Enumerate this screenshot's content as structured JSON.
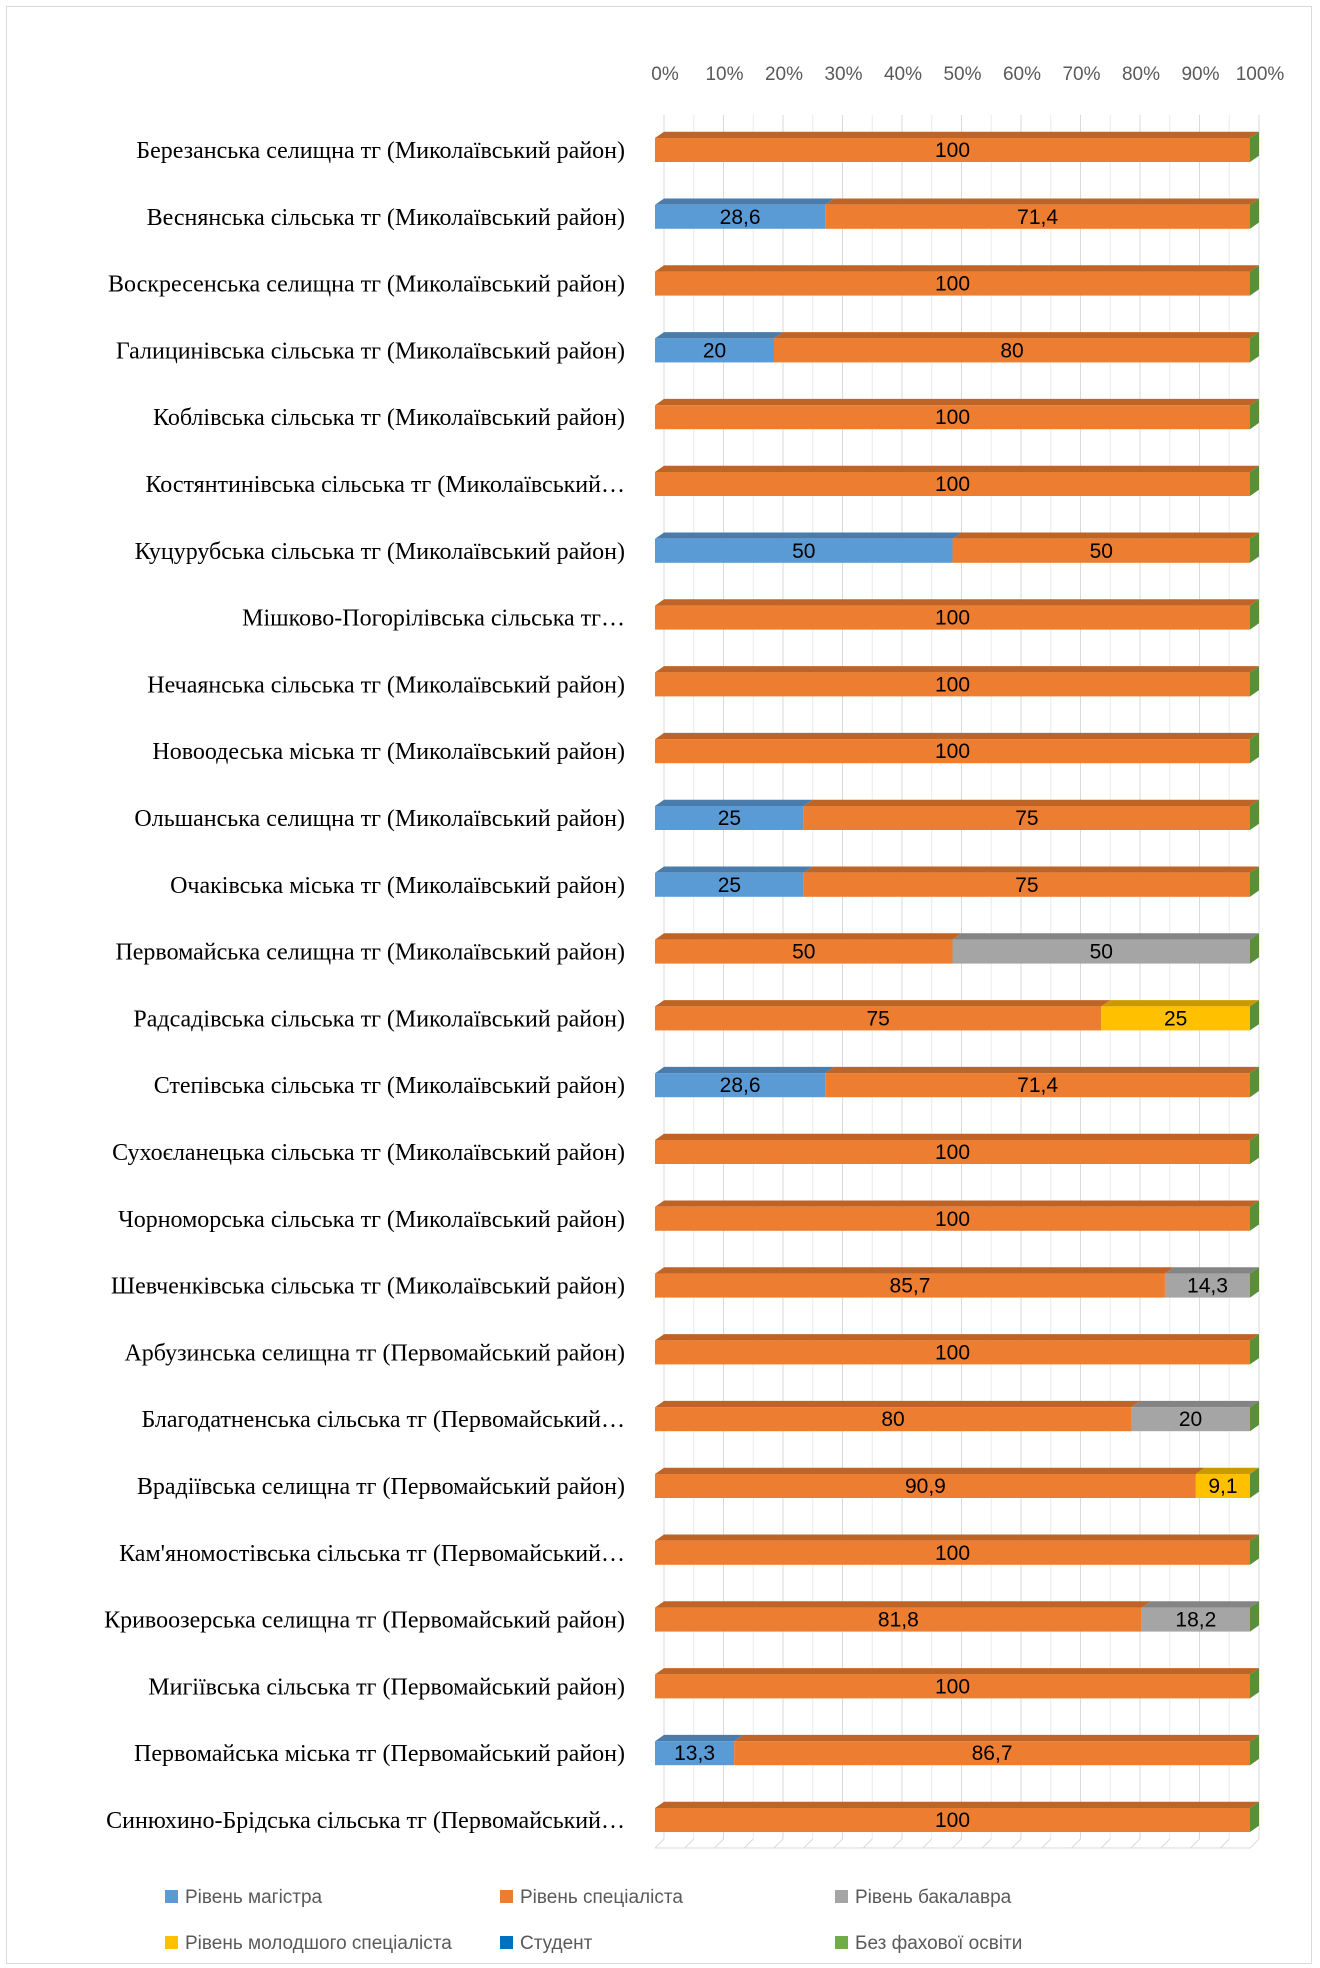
{
  "chart_data": {
    "type": "bar",
    "orientation": "horizontal",
    "stacked": "percent",
    "style": "3d",
    "grid": true,
    "legend_position": "bottom",
    "x_ticks": [
      "0%",
      "10%",
      "20%",
      "30%",
      "40%",
      "50%",
      "60%",
      "70%",
      "80%",
      "90%",
      "100%"
    ],
    "xlim": [
      0,
      100
    ],
    "categories": [
      "Березанська селищна тг (Миколаївський район)",
      "Веснянська сільська тг (Миколаївський район)",
      "Воскресенська  селищна тг (Миколаївський район)",
      "Галицинівська сільська тг (Миколаївський район)",
      "Коблівська сільська тг (Миколаївський район)",
      "Костянтинівська сільська тг (Миколаївський…",
      "Куцурубська сільська тг (Миколаївський район)",
      "Мішково-Погорілівська сільська тг…",
      "Нечаянська сільська тг (Миколаївський район)",
      "Новоодеська міська тг (Миколаївський район)",
      "Ольшанська селищна тг (Миколаївський район)",
      "Очаківська міська тг (Миколаївський район)",
      "Первомайська селищна тг (Миколаївський район)",
      "Радсадівська сільська тг (Миколаївський район)",
      "Степівська сільська тг (Миколаївський район)",
      "Сухоєланецька сільська тг (Миколаївський район)",
      "Чорноморська сільська тг (Миколаївський район)",
      "Шевченківська сільська тг (Миколаївський район)",
      "Арбузинська селищна тг (Первомайський район)",
      "Благодатненська сільська тг (Первомайський…",
      "Врадіївська селищна тг (Первомайський район)",
      "Кам'яномостівська сільська тг (Первомайський…",
      "Кривоозерська селищна тг (Первомайський район)",
      "Мигіївська сільська тг (Первомайський район)",
      "Первомайська міська тг (Первомайський район)",
      "Синюхино-Брідська сільська тг (Первомайський…"
    ],
    "series": [
      {
        "name": "Рівень магістра",
        "color": "#5b9bd5",
        "values": [
          0,
          28.6,
          0,
          20,
          0,
          0,
          50,
          0,
          0,
          0,
          25,
          25,
          0,
          0,
          28.6,
          0,
          0,
          0,
          0,
          0,
          0,
          0,
          0,
          0,
          13.3,
          0
        ],
        "labels": [
          "",
          "28,6",
          "",
          "20",
          "",
          "",
          "50",
          "",
          "",
          "",
          "25",
          "25",
          "",
          "",
          "28,6",
          "",
          "",
          "",
          "",
          "",
          "",
          "",
          "",
          "",
          "13,3",
          ""
        ]
      },
      {
        "name": "Рівень спеціаліста",
        "color": "#ed7d31",
        "values": [
          100,
          71.4,
          100,
          80,
          100,
          100,
          50,
          100,
          100,
          100,
          75,
          75,
          50,
          75,
          71.4,
          100,
          100,
          85.7,
          100,
          80,
          90.9,
          100,
          81.8,
          100,
          86.7,
          100
        ],
        "labels": [
          "100",
          "71,4",
          "100",
          "80",
          "100",
          "100",
          "50",
          "100",
          "100",
          "100",
          "75",
          "75",
          "50",
          "75",
          "71,4",
          "100",
          "100",
          "85,7",
          "100",
          "80",
          "90,9",
          "100",
          "81,8",
          "100",
          "86,7",
          "100"
        ]
      },
      {
        "name": "Рівень бакалавра",
        "color": "#a5a5a5",
        "values": [
          0,
          0,
          0,
          0,
          0,
          0,
          0,
          0,
          0,
          0,
          0,
          0,
          50,
          0,
          0,
          0,
          0,
          14.3,
          0,
          20,
          0,
          0,
          18.2,
          0,
          0,
          0
        ],
        "labels": [
          "",
          "",
          "",
          "",
          "",
          "",
          "",
          "",
          "",
          "",
          "",
          "",
          "50",
          "",
          "",
          "",
          "",
          "14,3",
          "",
          "20",
          "",
          "",
          "18,2",
          "",
          "",
          ""
        ]
      },
      {
        "name": "Рівень молодшого спеціаліста",
        "color": "#ffc000",
        "values": [
          0,
          0,
          0,
          0,
          0,
          0,
          0,
          0,
          0,
          0,
          0,
          0,
          0,
          25,
          0,
          0,
          0,
          0,
          0,
          0,
          9.1,
          0,
          0,
          0,
          0,
          0
        ],
        "labels": [
          "",
          "",
          "",
          "",
          "",
          "",
          "",
          "",
          "",
          "",
          "",
          "",
          "",
          "25",
          "",
          "",
          "",
          "",
          "",
          "",
          "9,1",
          "",
          "",
          "",
          "",
          ""
        ]
      },
      {
        "name": "Студент",
        "color": "#0070c0",
        "values": [
          0,
          0,
          0,
          0,
          0,
          0,
          0,
          0,
          0,
          0,
          0,
          0,
          0,
          0,
          0,
          0,
          0,
          0,
          0,
          0,
          0,
          0,
          0,
          0,
          0,
          0
        ],
        "labels": [
          "",
          "",
          "",
          "",
          "",
          "",
          "",
          "",
          "",
          "",
          "",
          "",
          "",
          "",
          "",
          "",
          "",
          "",
          "",
          "",
          "",
          "",
          "",
          "",
          "",
          ""
        ]
      },
      {
        "name": "Без фахової освіти",
        "color": "#70ad47",
        "values": [
          0,
          0,
          0,
          0,
          0,
          0,
          0,
          0,
          0,
          0,
          0,
          0,
          0,
          0,
          0,
          0,
          0,
          0,
          0,
          0,
          0,
          0,
          0,
          0,
          0,
          0
        ],
        "labels": [
          "",
          "",
          "",
          "",
          "",
          "",
          "",
          "",
          "",
          "",
          "",
          "",
          "",
          "",
          "",
          "",
          "",
          "",
          "",
          "",
          "",
          "",
          "",
          "",
          "",
          ""
        ]
      }
    ]
  }
}
